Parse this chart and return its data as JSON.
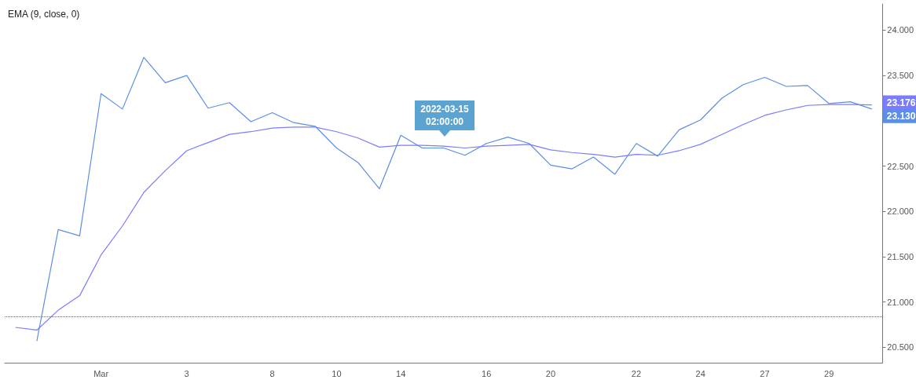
{
  "chart_data": {
    "type": "line",
    "title": "EMA (9, close, 0)",
    "categories": [
      null,
      null,
      null,
      null,
      "Mar",
      null,
      null,
      null,
      "3",
      null,
      null,
      null,
      "8",
      null,
      null,
      "10",
      null,
      null,
      "14",
      null,
      null,
      null,
      "16",
      null,
      null,
      "20",
      null,
      null,
      null,
      "22",
      null,
      null,
      "24",
      null,
      null,
      "27",
      null,
      null,
      "29",
      null,
      null
    ],
    "series": [
      {
        "color": "#5b8ee6",
        "values": [
          null,
          20.57,
          21.8,
          21.73,
          23.3,
          23.13,
          23.7,
          23.42,
          23.5,
          23.14,
          23.2,
          22.99,
          23.09,
          22.98,
          22.94,
          22.7,
          22.54,
          22.25,
          22.84,
          22.7,
          22.7,
          22.62,
          22.75,
          22.82,
          22.75,
          22.51,
          22.47,
          22.6,
          22.41,
          22.75,
          22.61,
          22.9,
          23.01,
          23.25,
          23.4,
          23.48,
          23.38,
          23.39,
          23.19,
          23.21,
          23.13
        ],
        "value_labels": [
          null,
          null,
          null,
          null,
          null,
          null,
          null,
          null,
          null,
          null,
          null,
          null,
          null,
          null,
          null,
          null,
          null,
          null,
          null,
          null,
          null,
          null,
          null,
          null,
          null,
          null,
          null,
          null,
          null,
          null,
          null,
          null,
          null,
          null,
          null,
          null,
          null,
          null,
          null,
          null,
          "23.130"
        ]
      },
      {
        "color": "#7b7bff",
        "values": [
          20.72,
          20.69,
          20.91,
          21.07,
          21.52,
          21.84,
          22.21,
          22.45,
          22.67,
          22.76,
          22.85,
          22.88,
          22.92,
          22.93,
          22.93,
          22.88,
          22.81,
          22.71,
          22.73,
          22.73,
          22.72,
          22.7,
          22.72,
          22.73,
          22.74,
          22.68,
          22.65,
          22.63,
          22.6,
          22.63,
          22.62,
          22.67,
          22.74,
          22.85,
          22.96,
          23.06,
          23.12,
          23.17,
          23.18,
          23.18,
          23.176
        ],
        "value_labels": [
          null,
          null,
          null,
          null,
          null,
          null,
          null,
          null,
          null,
          null,
          null,
          null,
          null,
          null,
          null,
          null,
          null,
          null,
          null,
          null,
          null,
          null,
          null,
          null,
          null,
          null,
          null,
          null,
          null,
          null,
          null,
          null,
          null,
          null,
          null,
          null,
          null,
          null,
          null,
          null,
          "23.176"
        ]
      }
    ],
    "ylim": [
      20.33,
      24.29
    ],
    "yticks": [
      {
        "value": 20.5,
        "label": "20.500"
      },
      {
        "value": 21,
        "label": "21.000"
      },
      {
        "value": 21.5,
        "label": "21.500"
      },
      {
        "value": 22,
        "label": "22.000"
      },
      {
        "value": 22.5,
        "label": "22.500"
      },
      {
        "value": 23,
        "label": null
      },
      {
        "value": 23.5,
        "label": "23.500"
      },
      {
        "value": 24,
        "label": "24.000"
      }
    ],
    "ref_lines": [
      {
        "axis": "y",
        "value": 20.84,
        "color": "#3366cc",
        "line_style": "dotted"
      }
    ],
    "annotations": [
      "2022-03-15\n02:00:00"
    ],
    "marker": "none",
    "grid": false
  }
}
